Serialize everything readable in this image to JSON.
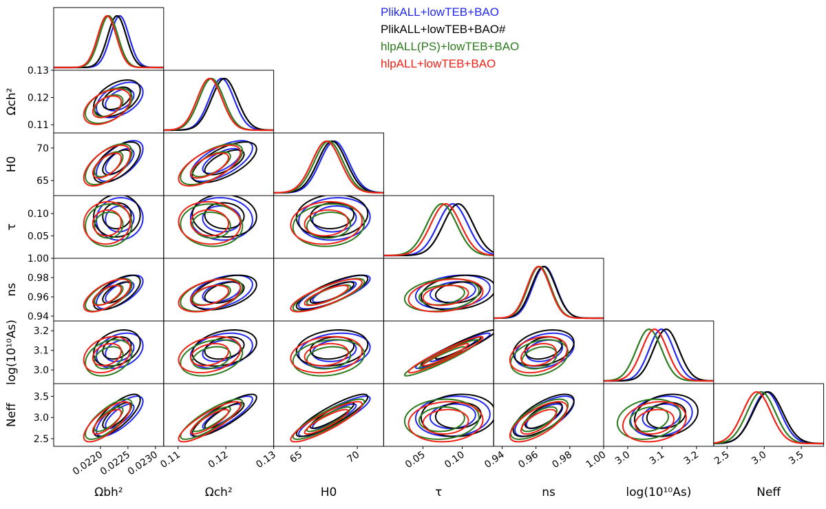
{
  "chart_data": {
    "type": "corner",
    "legend": {
      "placement": "top-right",
      "entries": [
        {
          "label": "PlikALL+lowTEB+BAO",
          "color": "#1f26f0"
        },
        {
          "label": "PlikALL+lowTEB+BAO#",
          "color": "#000000"
        },
        {
          "label": "hlpALL(PS)+lowTEB+BAO",
          "color": "#2a7a1c"
        },
        {
          "label": "hlpALL+lowTEB+BAO",
          "color": "#f02015"
        }
      ]
    },
    "parameters": [
      {
        "key": "omegabh2",
        "xlabel": "Ωbh²",
        "ylabel": "",
        "range": [
          0.02115,
          0.02315
        ],
        "xticks": [
          "0.0220",
          "0.0225",
          "0.0230"
        ],
        "yticks": [],
        "tickvals": [
          0.022,
          0.0225,
          0.023
        ]
      },
      {
        "key": "omegach2",
        "xlabel": "Ωch²",
        "ylabel": "Ωch²",
        "range": [
          0.107,
          0.13
        ],
        "xticks": [
          "0.11",
          "0.12",
          "0.13"
        ],
        "yticks": [
          "0.11",
          "0.12",
          "0.13"
        ],
        "tickvals": [
          0.11,
          0.12,
          0.13
        ]
      },
      {
        "key": "H0",
        "xlabel": "H0",
        "ylabel": "H0",
        "range": [
          62.7,
          72.3
        ],
        "xticks": [
          "65",
          "70"
        ],
        "yticks": [
          "65",
          "70"
        ],
        "tickvals": [
          65,
          70
        ]
      },
      {
        "key": "tau",
        "xlabel": "τ",
        "ylabel": "τ",
        "range": [
          0.0,
          0.14
        ],
        "xticks": [
          "0.05",
          "0.10"
        ],
        "yticks": [
          "0.05",
          "0.10"
        ],
        "tickvals": [
          0.05,
          0.1
        ]
      },
      {
        "key": "ns",
        "xlabel": "ns",
        "ylabel": "ns",
        "range": [
          0.935,
          1.0
        ],
        "xticks": [
          "0.94",
          "0.96",
          "0.98",
          "1.00"
        ],
        "yticks": [
          "0.94",
          "0.96",
          "0.98",
          "1.00"
        ],
        "tickvals": [
          0.94,
          0.96,
          0.98,
          1.0
        ]
      },
      {
        "key": "logA",
        "xlabel": "log(10¹⁰As)",
        "ylabel": "log(10¹⁰As)",
        "range": [
          2.93,
          3.25
        ],
        "xticks": [
          "3.0",
          "3.1",
          "3.2"
        ],
        "yticks": [
          "3.0",
          "3.1",
          "3.2"
        ],
        "tickvals": [
          3.0,
          3.1,
          3.2
        ]
      },
      {
        "key": "Neff",
        "xlabel": "Neff",
        "ylabel": "Neff",
        "range": [
          2.32,
          3.8
        ],
        "xticks": [
          "2.5",
          "3.0",
          "3.5"
        ],
        "yticks": [
          "2.5",
          "3.0",
          "3.5"
        ],
        "tickvals": [
          2.5,
          3.0,
          3.5
        ]
      }
    ],
    "series": [
      {
        "name": "PlikALL+lowTEB+BAO",
        "color": "#1f26f0",
        "mean": [
          0.02235,
          0.1191,
          68.0,
          0.088,
          0.965,
          3.098,
          3.03
        ],
        "sigma": [
          0.00017,
          0.0026,
          1.25,
          0.019,
          0.007,
          0.036,
          0.19
        ]
      },
      {
        "name": "PlikALL+lowTEB+BAO#",
        "color": "#000000",
        "mean": [
          0.0223,
          0.1197,
          67.8,
          0.095,
          0.9645,
          3.112,
          3.05
        ],
        "sigma": [
          0.00017,
          0.0027,
          1.25,
          0.019,
          0.0072,
          0.037,
          0.2
        ]
      },
      {
        "name": "hlpALL(PS)+lowTEB+BAO",
        "color": "#2a7a1c",
        "mean": [
          0.02215,
          0.117,
          67.5,
          0.074,
          0.962,
          3.062,
          2.96
        ],
        "sigma": [
          0.00017,
          0.0026,
          1.25,
          0.019,
          0.0068,
          0.037,
          0.19
        ]
      },
      {
        "name": "hlpALL+lowTEB+BAO",
        "color": "#f02015",
        "mean": [
          0.02212,
          0.1166,
          67.3,
          0.079,
          0.9615,
          3.078,
          2.9
        ],
        "sigma": [
          0.00017,
          0.0026,
          1.25,
          0.019,
          0.0068,
          0.037,
          0.19
        ]
      }
    ],
    "correlations": {
      "0-1": 0.45,
      "0-2": 0.6,
      "1-2": 0.65,
      "0-3": 0.05,
      "1-3": -0.05,
      "2-3": 0.1,
      "0-4": 0.65,
      "1-4": 0.45,
      "2-4": 0.8,
      "3-4": 0.25,
      "0-5": 0.3,
      "1-5": 0.3,
      "2-5": 0.2,
      "3-5": 0.95,
      "4-5": 0.3,
      "0-6": 0.75,
      "1-6": 0.85,
      "2-6": 0.88,
      "3-6": 0.1,
      "4-6": 0.7,
      "5-6": 0.2
    },
    "contour_levels": [
      "68%",
      "95%"
    ],
    "grid": false
  }
}
